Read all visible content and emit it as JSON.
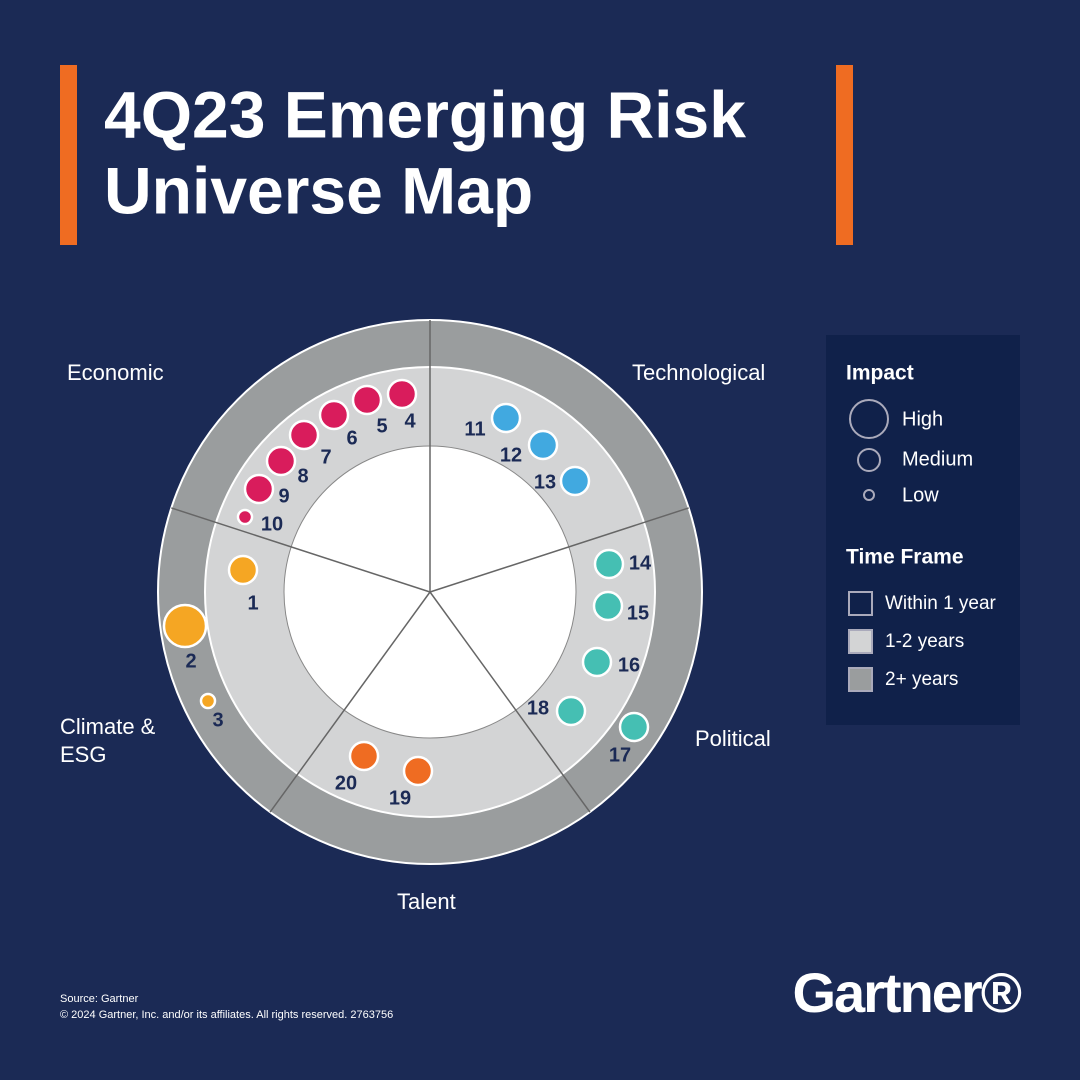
{
  "title": [
    "4Q23 Emerging Risk",
    "Universe Map"
  ],
  "categories": [
    "Economic",
    "Technological",
    "Political",
    "Talent",
    "Climate & ESG"
  ],
  "risks": [
    "1",
    "2",
    "3",
    "4",
    "5",
    "6",
    "7",
    "8",
    "9",
    "10",
    "11",
    "12",
    "13",
    "14",
    "15",
    "16",
    "17",
    "18",
    "19",
    "20"
  ],
  "legend": {
    "impact_title": "Impact",
    "impact": [
      "High",
      "Medium",
      "Low"
    ],
    "time_title": "Time Frame",
    "time": [
      "Within 1 year",
      "1-2 years",
      "2+ years"
    ]
  },
  "footer": {
    "source": "Source: Gartner",
    "copyright": "© 2024 Gartner, Inc. and/or its affiliates. All rights reserved. 2763756"
  },
  "logo": "Gartner®"
}
